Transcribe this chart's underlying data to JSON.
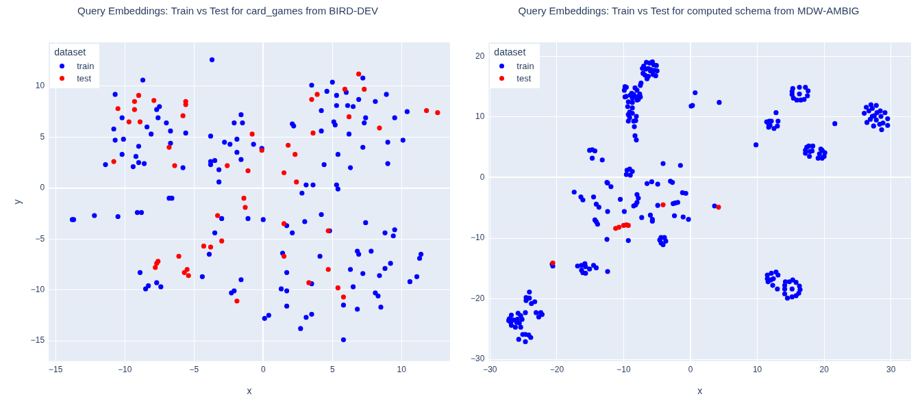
{
  "chart_data": [
    {
      "type": "scatter",
      "title": "Query Embeddings: Train vs Test for card_games from BIRD-DEV",
      "xlabel": "x",
      "ylabel": "y",
      "legend_title": "dataset",
      "legend": "top left",
      "grid": true,
      "marker": "circle",
      "xlim": [
        -15.5,
        13.5
      ],
      "ylim": [
        -17,
        14.3
      ],
      "xticks": [
        -15,
        -10,
        -5,
        0,
        5,
        10
      ],
      "yticks": [
        -15,
        -10,
        -5,
        0,
        5,
        10
      ],
      "series": [
        {
          "name": "train",
          "color": "#0000ff",
          "x": [
            -10.7,
            -10.2,
            -10.8,
            -10.7,
            -10.1,
            -10.2,
            -11.4,
            -9.0,
            -9.2,
            -9.0,
            -9.4,
            -8.6,
            -8.7,
            -3.7,
            -7.7,
            -7.5,
            -7.6,
            -8.4,
            -8.1,
            -7.0,
            -6.7,
            -6.7,
            -5.6,
            -5.8,
            -3.8,
            -3.8,
            -3.8,
            -3.5,
            -3.2,
            -3.2,
            -2.8,
            -2.4,
            -2.1,
            -1.6,
            -1.5,
            -1.9,
            -1.9,
            -1.6,
            -6.8,
            -6.6,
            3.5,
            5.0,
            4.6,
            5.3,
            6.0,
            7.2,
            6.9,
            5.3,
            6.1,
            6.5,
            8.1,
            8.9,
            4.2,
            7.4,
            7.3,
            9.5,
            10.4,
            5.1,
            5.2,
            2.1,
            2.2,
            4.2,
            6.2,
            -0.7,
            -0.1,
            7.2,
            9.0,
            10.1,
            5.4,
            4.4,
            6.3,
            9.0,
            3.1,
            3.6,
            5.3,
            5.4,
            2.8,
            -13.8,
            -13.7,
            -12.2,
            -10.5,
            -9.1,
            -8.8,
            -3.0,
            -1.1,
            -3.5,
            -3.9,
            -4.4,
            -1.6,
            -8.9,
            -7.7,
            -8.3,
            -8.5,
            -7.4,
            -2.3,
            -2.1,
            0.0,
            1.7,
            2.1,
            3.0,
            4.2,
            4.8,
            7.4,
            8.8,
            9.5,
            9.4,
            1.4,
            4.1,
            1.7,
            1.3,
            1.7,
            1.7,
            0.1,
            0.4,
            3.1,
            3.5,
            2.7,
            3.5,
            5.8,
            5.8,
            6.3,
            6.5,
            6.8,
            6.9,
            7.8,
            7.2,
            8.4,
            8.8,
            9.2,
            8.1,
            8.3,
            6.8,
            8.5,
            10.6,
            11.1,
            11.3,
            11.4
          ],
          "values": [
            9.2,
            6.9,
            5.8,
            4.7,
            4.8,
            3.3,
            2.3,
            4.1,
            3.1,
            2.5,
            2.1,
            2.4,
            10.6,
            12.6,
            7.7,
            8.0,
            6.9,
            6.0,
            5.3,
            6.4,
            5.6,
            4.4,
            5.4,
            2.0,
            5.1,
            2.6,
            2.3,
            2.7,
            1.8,
            0.6,
            4.5,
            4.3,
            6.4,
            7.2,
            6.4,
            4.8,
            3.5,
            2.8,
            -1.0,
            -1.0,
            10.1,
            10.4,
            9.5,
            9.1,
            9.4,
            10.8,
            8.7,
            8.1,
            8.1,
            8.0,
            8.5,
            9.2,
            7.6,
            6.9,
            6.4,
            6.9,
            7.5,
            6.5,
            6.2,
            6.3,
            6.1,
            5.6,
            5.3,
            4.3,
            3.9,
            4.0,
            4.5,
            4.7,
            3.3,
            2.3,
            2.0,
            2.4,
            0.3,
            0.3,
            0.3,
            -0.1,
            -0.5,
            -3.1,
            -3.1,
            -2.7,
            -2.8,
            -2.4,
            -2.4,
            -3.0,
            -3.0,
            -4.4,
            -6.5,
            -8.7,
            -9.0,
            -8.3,
            -9.3,
            -9.6,
            -9.9,
            -9.7,
            -10.3,
            -10.1,
            -3.1,
            -3.7,
            -4.4,
            -3.3,
            -2.6,
            -4.2,
            -3.4,
            -4.4,
            -4.1,
            -4.7,
            -6.4,
            -6.7,
            -8.3,
            -9.9,
            -10.1,
            -11.6,
            -12.8,
            -12.5,
            -12.7,
            -12.4,
            -13.8,
            -9.4,
            -11.5,
            -14.9,
            -8.0,
            -9.7,
            -6.2,
            -6.5,
            -6.2,
            -8.4,
            -8.6,
            -7.9,
            -7.4,
            -10.3,
            -10.6,
            -11.9,
            -11.7,
            -9.2,
            -8.7,
            -6.9,
            -6.5
          ]
        },
        {
          "name": "test",
          "color": "#ff0000",
          "x": [
            -10.5,
            -9.3,
            -9.0,
            -9.3,
            -9.7,
            -8.9,
            -7.9,
            -5.6,
            -5.6,
            -5.8,
            -6.8,
            -6.4,
            -10.8,
            -2.6,
            -1.1,
            -1.4,
            6.9,
            5.9,
            7.3,
            3.9,
            3.5,
            6.2,
            8.4,
            11.8,
            12.6,
            -0.8,
            3.6,
            -0.1,
            1.8,
            2.3,
            1.5,
            2.4,
            -1.3,
            -3.3,
            -3.0,
            -4.3,
            -3.8,
            -6.1,
            -7.6,
            -7.7,
            -7.8,
            -5.7,
            -5.5,
            -5.4,
            -1.9,
            1.5,
            4.7,
            1.5,
            4.7,
            3.3,
            5.4,
            5.8
          ],
          "values": [
            7.8,
            8.5,
            9.1,
            7.7,
            6.5,
            6.5,
            8.6,
            8.5,
            8.2,
            7.1,
            4.0,
            2.2,
            2.6,
            2.2,
            1.7,
            -1.0,
            11.2,
            9.7,
            9.7,
            9.2,
            8.7,
            7.0,
            5.9,
            7.6,
            7.4,
            5.3,
            5.4,
            3.7,
            4.2,
            3.3,
            1.5,
            0.6,
            -1.9,
            -2.7,
            -5.2,
            -5.7,
            -5.8,
            -6.7,
            -7.2,
            -7.4,
            -7.8,
            -8.3,
            -8.0,
            -8.6,
            -11.1,
            -3.5,
            -4.2,
            -6.7,
            -8.0,
            -9.3,
            -9.8,
            -10.7
          ]
        }
      ]
    },
    {
      "type": "scatter",
      "title": "Query Embeddings: Train vs Test for computed schema from MDW-AMBIG",
      "xlabel": "x",
      "legend_title": "dataset",
      "legend": "top left",
      "grid": true,
      "marker": "circle",
      "xlim": [
        -30.2,
        33
      ],
      "ylim": [
        -30.3,
        22.3
      ],
      "xticks": [
        -30,
        -20,
        -10,
        0,
        10,
        20,
        30
      ],
      "yticks": [
        -30,
        -20,
        -10,
        0,
        10,
        20
      ],
      "series": [
        {
          "name": "train",
          "color": "#0000ff",
          "x": [
            -6.6,
            -6.1,
            -5.7,
            -5.5,
            -5.1,
            -7.0,
            -7.2,
            -6.7,
            -6.3,
            -5.9,
            -6.0,
            -5.4,
            -5.0,
            -7.1,
            -6.8,
            -6.3,
            -6.5,
            -5.6,
            -5.2,
            -7.4,
            -7.5,
            -9.8,
            -9.6,
            -9.9,
            -8.3,
            -8.0,
            -8.8,
            -9.0,
            -8.5,
            -7.6,
            -9.8,
            -9.6,
            -8.7,
            -8.1,
            -7.5,
            -9.3,
            -8.7,
            -8.0,
            -7.8,
            -9.4,
            -8.7,
            -9.1,
            -8.7,
            -9.3,
            -8.1,
            -9.1,
            -8.2,
            -9.3,
            -8.5,
            -8.4,
            -8.3,
            -8.1,
            -15.1,
            -14.7,
            -14.3,
            -14.7,
            -13.2,
            -9.5,
            -9.1,
            -8.7,
            -9.6,
            -9.0,
            -4.1,
            -1.5,
            -12.5,
            -12.4,
            -11.9,
            -6.5,
            -5.8,
            -4.9,
            -3.0,
            -2.7,
            -17.4,
            -16.4,
            -16.1,
            -14.5,
            -14.1,
            -13.7,
            -14.3,
            -14.1,
            -13.9,
            -12.4,
            -10.5,
            -9.9,
            -8.0,
            -7.8,
            -8.0,
            -8.2,
            -8.5,
            -4.9,
            -6.0,
            -5.7,
            -5.7,
            -7.3,
            -2.6,
            -2.3,
            -1.9,
            -2.4,
            -1.1,
            -12.5,
            -9.3,
            -4.4,
            -3.9,
            -4.6,
            -3.7,
            -4.4,
            -4.1,
            -1.2,
            -16.9,
            -16.3,
            -15.8,
            -15.7,
            -16.3,
            -16.1,
            -15.7,
            -15.1,
            -14.5,
            -14.1,
            -12.4,
            -20.7,
            -20.6,
            -24.1,
            -24.6,
            -24.1,
            -24.6,
            -23.8,
            -23.3,
            -24.7,
            -23.1,
            -22.7,
            -22.4,
            -22.2,
            -26.8,
            -27.1,
            -25.8,
            -25.4,
            -26.5,
            -25.9,
            -25.2,
            -26.9,
            -26.0,
            -26.8,
            -25.6,
            -26.2,
            -25.4,
            -25.1,
            -24.7,
            -24.2,
            -23.9,
            -25.7,
            -24.7,
            -27.2,
            0.7,
            0.1,
            0.3,
            4.3,
            9.8,
            12.8,
            11.4,
            11.7,
            11.8,
            12.1,
            11.9,
            13.1,
            13.0,
            12.5,
            11.7,
            15.3,
            16.3,
            17.2,
            17.6,
            15.2,
            15.4,
            15.9,
            16.5,
            17.0,
            17.5,
            16.3,
            15.2,
            21.6,
            26.0,
            26.3,
            26.7,
            27.0,
            27.2,
            27.8,
            28.4,
            29.1,
            27.9,
            27.5,
            27.2,
            28.5,
            29.5,
            26.9,
            27.8,
            26.4,
            27.4,
            28.3,
            28.8,
            29.5,
            28.6,
            17.2,
            17.4,
            17.7,
            18.3,
            18.2,
            17.9,
            17.2,
            17.8,
            19.5,
            19.7,
            20.1,
            19.3,
            20.0,
            19.7,
            19.1,
            -0.7,
            -0.3,
            3.6,
            11.5,
            12.1,
            12.8,
            13.1,
            11.5,
            12.0,
            12.4,
            11.6,
            12.3,
            13.0,
            14.2,
            14.8,
            15.3,
            15.8,
            16.3,
            14.1,
            14.1,
            15.2,
            16.4,
            16.2,
            15.8,
            14.1,
            15.2,
            14.5
          ],
          "values": [
            19.0,
            18.9,
            19.1,
            18.6,
            18.5,
            18.4,
            18.0,
            17.9,
            18.0,
            17.8,
            17.6,
            17.7,
            17.6,
            17.2,
            16.9,
            16.7,
            16.3,
            17.0,
            16.8,
            15.6,
            15.2,
            15.0,
            14.9,
            14.4,
            14.8,
            14.4,
            13.9,
            13.6,
            13.7,
            13.8,
            13.3,
            13.4,
            13.1,
            13.3,
            13.3,
            12.5,
            12.4,
            12.8,
            12.9,
            11.7,
            11.5,
            10.8,
            10.6,
            10.4,
            10.1,
            9.9,
            9.4,
            9.3,
            9.3,
            8.4,
            6.9,
            6.2,
            4.5,
            4.6,
            4.4,
            3.2,
            2.9,
            1.2,
            1.4,
            1.0,
            0.5,
            0.4,
            2.3,
            2.0,
            -0.8,
            -0.9,
            -1.5,
            -1.0,
            -0.7,
            -1.1,
            -0.6,
            -0.8,
            -2.4,
            -3.2,
            -3.7,
            -3.2,
            -4.4,
            -4.9,
            -7.0,
            -7.3,
            -7.7,
            -5.6,
            -3.6,
            -5.6,
            -2.8,
            -3.4,
            -4.1,
            -4.5,
            -4.7,
            -4.6,
            -6.2,
            -6.9,
            -7.2,
            -6.6,
            -4.3,
            -4.2,
            -4.1,
            -6.3,
            -6.5,
            -10.2,
            -10.4,
            -9.9,
            -9.9,
            -10.3,
            -10.5,
            -10.8,
            -11.1,
            -2.5,
            -14.6,
            -14.5,
            -14.2,
            -14.7,
            -15.3,
            -15.7,
            -15.8,
            -15.1,
            -14.5,
            -14.9,
            -15.5,
            -14.3,
            -14.6,
            -18.9,
            -19.8,
            -19.9,
            -20.3,
            -20.8,
            -20.5,
            -22.3,
            -22.3,
            -23.0,
            -22.3,
            -22.6,
            -22.7,
            -23.3,
            -22.4,
            -22.8,
            -23.5,
            -23.4,
            -23.4,
            -23.9,
            -23.9,
            -24.4,
            -24.0,
            -24.7,
            -24.7,
            -25.9,
            -25.9,
            -26.0,
            -26.4,
            -26.7,
            -27.1,
            -23.6,
            14.0,
            11.8,
            11.9,
            12.4,
            5.4,
            10.7,
            9.2,
            8.8,
            9.3,
            9.3,
            8.6,
            9.3,
            8.5,
            8.1,
            8.3,
            14.7,
            14.9,
            14.9,
            14.3,
            13.7,
            13.1,
            12.8,
            12.8,
            12.9,
            13.5,
            13.8,
            14.2,
            8.9,
            10.6,
            11.6,
            11.0,
            12.0,
            11.4,
            11.9,
            11.0,
            10.7,
            10.7,
            10.2,
            10.1,
            10.1,
            9.7,
            9.6,
            9.5,
            9.1,
            8.5,
            8.8,
            9.0,
            8.6,
            7.9,
            4.5,
            5.0,
            5.2,
            5.2,
            4.4,
            4.3,
            4.0,
            3.5,
            4.7,
            4.5,
            4.1,
            3.9,
            3.5,
            3.2,
            3.2,
            -2.6,
            -6.9,
            -4.7,
            -16.1,
            -15.8,
            -15.6,
            -16.1,
            -16.7,
            -16.9,
            -16.7,
            -17.2,
            -17.8,
            -18.4,
            -17.2,
            -17.2,
            -16.9,
            -17.3,
            -17.9,
            -17.8,
            -18.4,
            -18.4,
            -18.5,
            -19.1,
            -19.5,
            -19.2,
            -19.7,
            -19.9
          ]
        },
        {
          "name": "test",
          "color": "#ff0000",
          "x": [
            -11.2,
            -10.7,
            -10.0,
            -9.6,
            -9.3,
            -4.1,
            -20.6,
            4.2
          ],
          "values": [
            -8.4,
            -8.2,
            -7.9,
            -7.8,
            -7.9,
            -4.5,
            -14.1,
            -4.9
          ]
        }
      ]
    }
  ]
}
